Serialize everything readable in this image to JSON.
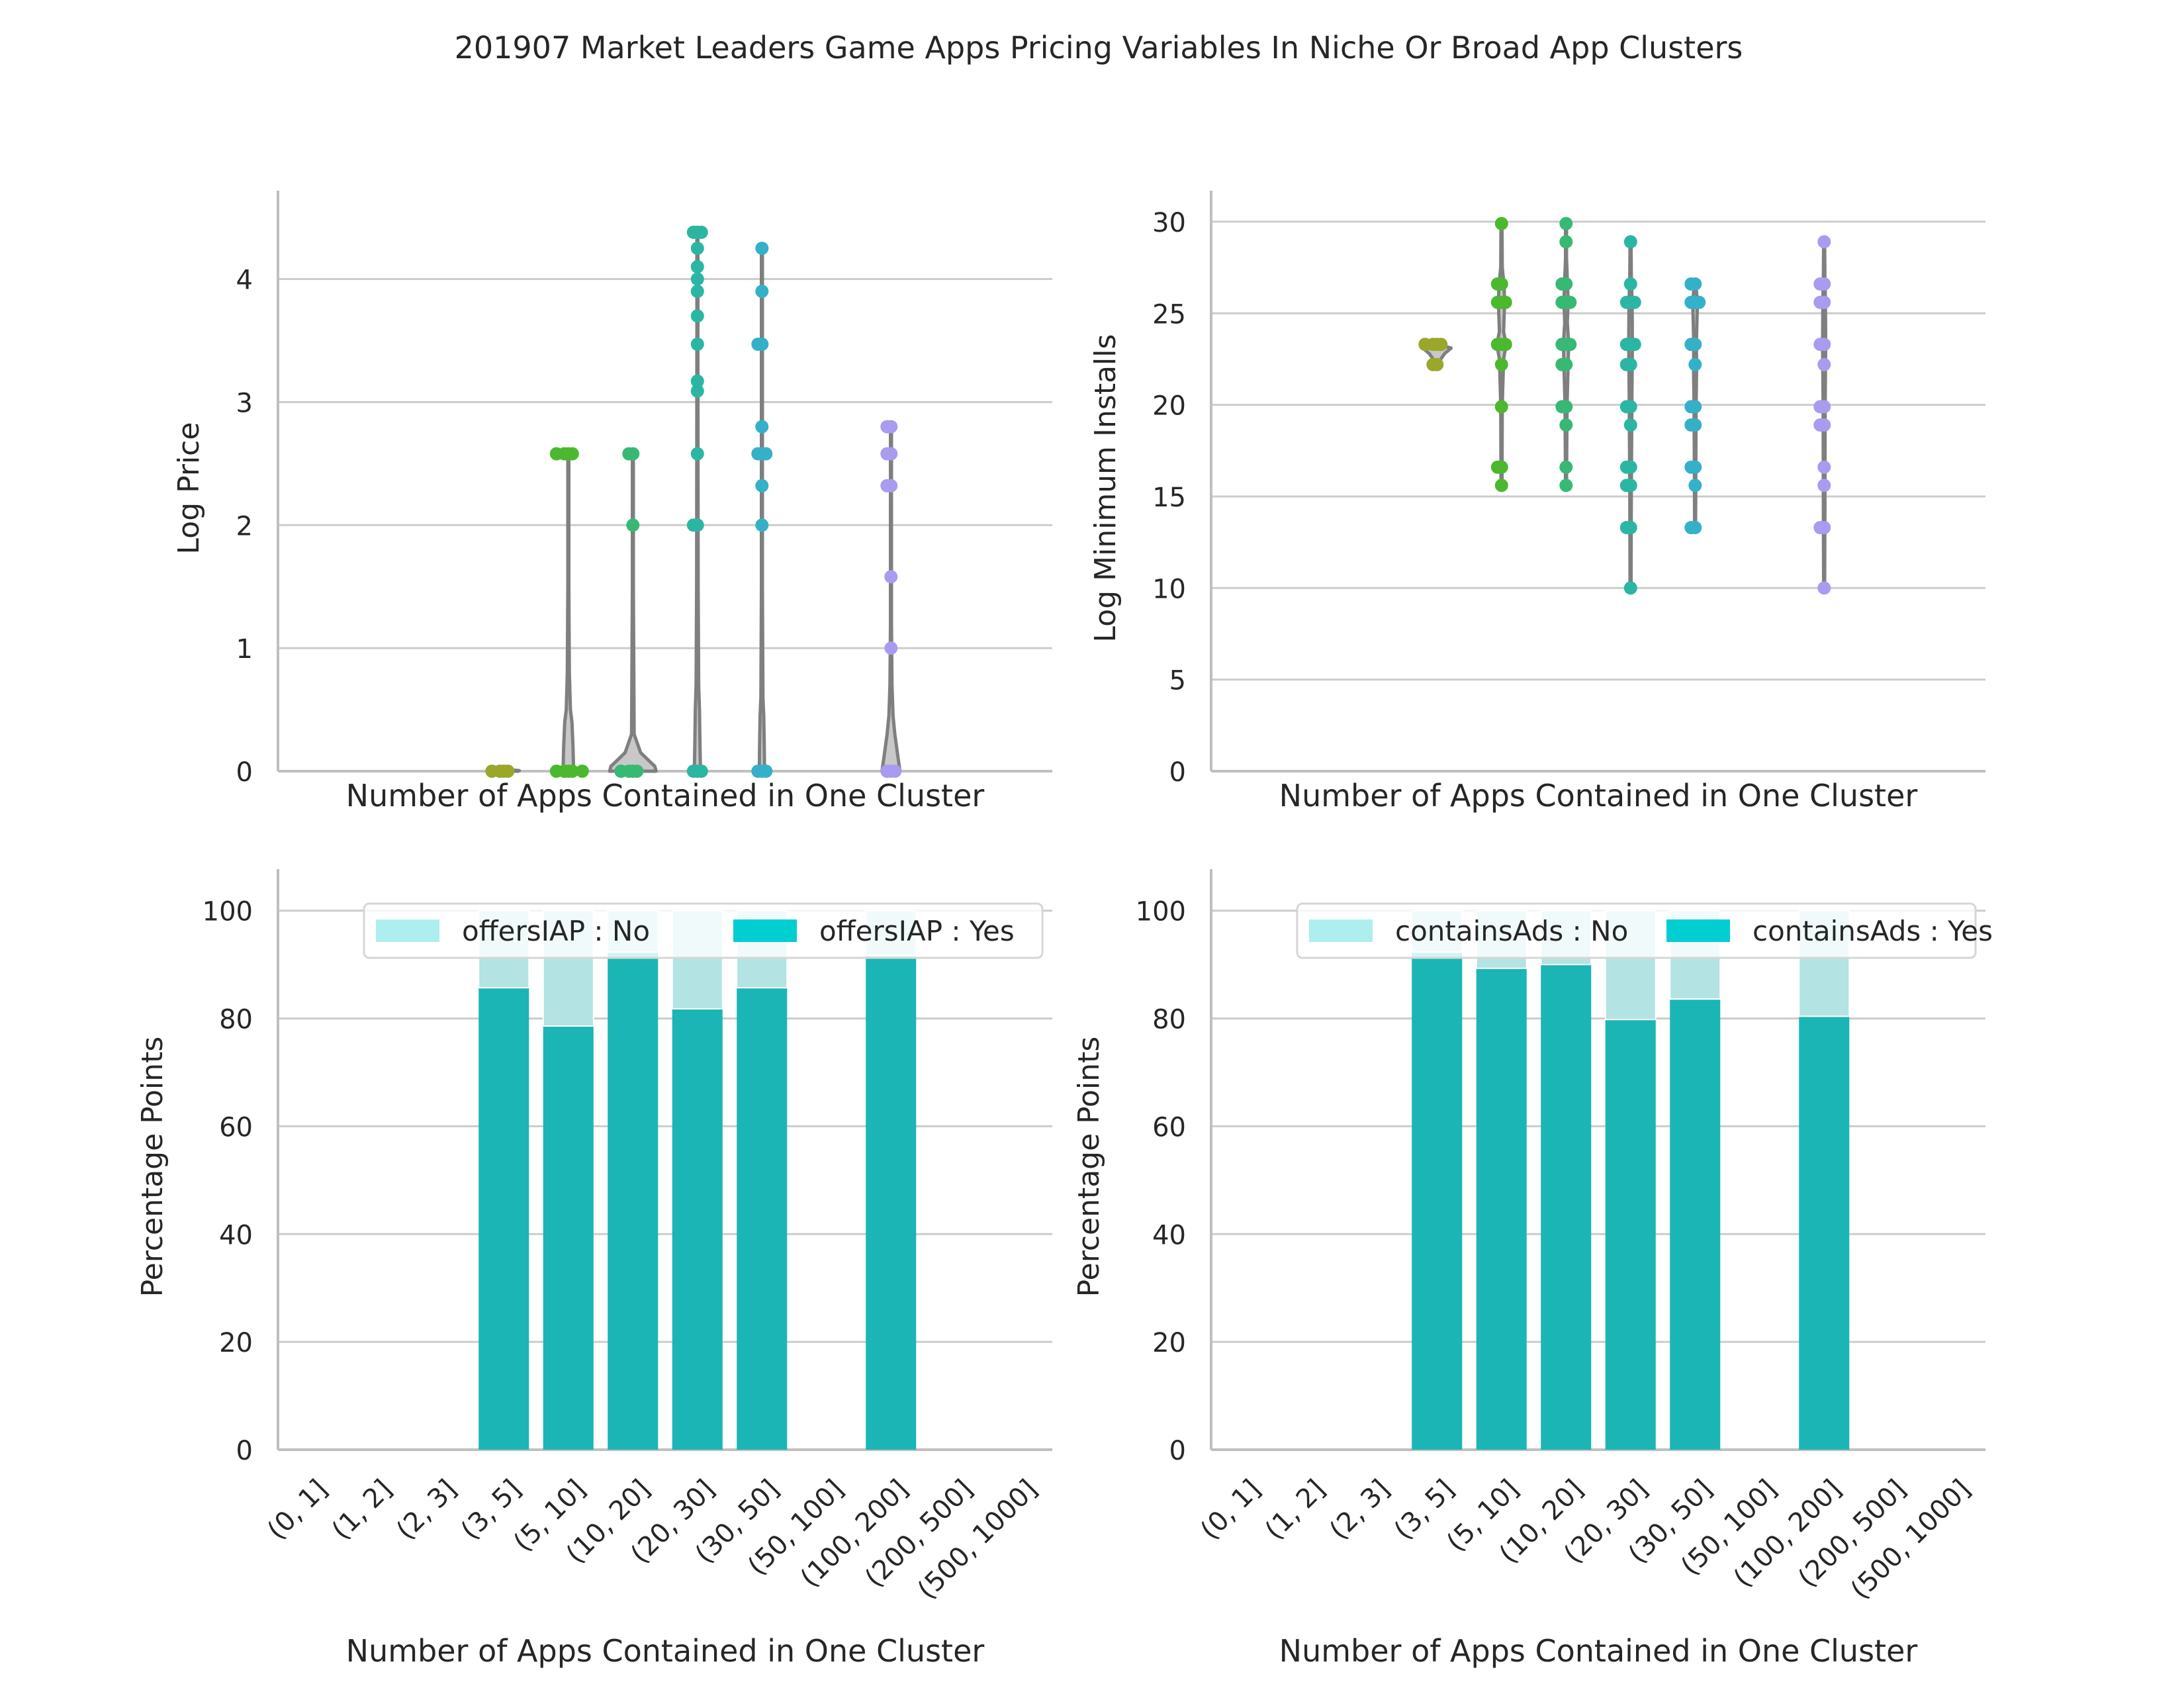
{
  "title": "201907 Market Leaders Game Apps Pricing Variables In Niche Or Broad App Clusters",
  "colors": {
    "grid": "#cccccc",
    "axis": "#bfbfbf",
    "violin_outline": "#7f7f7f",
    "violin_fill": "#c8c8c8",
    "bar_yes": "#1bb5b5",
    "bar_no": "#b3e3e3",
    "legend_yes": "#00ced1",
    "legend_no": "#afeeee",
    "strip_palette": [
      "#9aa72b",
      "#4cb82f",
      "#37b974",
      "#2bb6a3",
      "#35b0c9",
      "#3fb0d6",
      "#a99bf0"
    ]
  },
  "chart_data": [
    {
      "id": "price",
      "type": "violin-strip",
      "xlabel": "Number of Apps Contained in One Cluster",
      "ylabel": "Log Price",
      "ylim": [
        0,
        4.6
      ],
      "yticks": [
        0,
        1,
        2,
        3,
        4
      ],
      "grid": true,
      "categories": [
        "(0, 1]",
        "(1, 2]",
        "(2, 3]",
        "(3, 5]",
        "(5, 10]",
        "(10, 20]",
        "(20, 30]",
        "(30, 50]",
        "(50, 100]",
        "(100, 200]",
        "(200, 500]",
        "(500, 1000]"
      ],
      "category_colors": [
        "#9aa72b",
        "#9aa72b",
        "#9aa72b",
        "#9aa72b",
        "#4cb82f",
        "#37b974",
        "#2bb6a3",
        "#35b0c9",
        "#a99bf0",
        "#a99bf0",
        "#a99bf0",
        "#a99bf0"
      ],
      "violins": [
        {
          "category": "(3, 5]",
          "max": 0,
          "halfwidth": [
            [
              0,
              0.55
            ],
            [
              0.005,
              0.6
            ],
            [
              0.01,
              0.3
            ],
            [
              0.02,
              0.05
            ]
          ]
        },
        {
          "category": "(5, 10]",
          "max": 2.58,
          "halfwidth": [
            [
              0,
              0.25
            ],
            [
              0.05,
              0.2
            ],
            [
              0.2,
              0.18
            ],
            [
              0.4,
              0.14
            ],
            [
              0.5,
              0.08
            ],
            [
              0.8,
              0.04
            ],
            [
              1.5,
              0.02
            ],
            [
              2.58,
              0.02
            ]
          ]
        },
        {
          "category": "(10, 20]",
          "max": 2.58,
          "halfwidth": [
            [
              0,
              0.9
            ],
            [
              0.04,
              0.85
            ],
            [
              0.1,
              0.55
            ],
            [
              0.15,
              0.3
            ],
            [
              0.3,
              0.05
            ],
            [
              1.5,
              0.02
            ],
            [
              2.58,
              0.02
            ]
          ]
        },
        {
          "category": "(20, 30]",
          "max": 4.38,
          "halfwidth": [
            [
              0,
              0.12
            ],
            [
              0.2,
              0.1
            ],
            [
              0.5,
              0.08
            ],
            [
              0.7,
              0.05
            ],
            [
              1.5,
              0.03
            ],
            [
              3.5,
              0.02
            ],
            [
              4.38,
              0.02
            ]
          ]
        },
        {
          "category": "(30, 50]",
          "max": 4.25,
          "halfwidth": [
            [
              0,
              0.1
            ],
            [
              0.2,
              0.09
            ],
            [
              0.45,
              0.07
            ],
            [
              0.6,
              0.04
            ],
            [
              1.5,
              0.02
            ],
            [
              4.25,
              0.02
            ]
          ]
        },
        {
          "category": "(100, 200]",
          "max": 2.8,
          "halfwidth": [
            [
              0,
              0.35
            ],
            [
              0.1,
              0.28
            ],
            [
              0.3,
              0.15
            ],
            [
              0.45,
              0.08
            ],
            [
              0.7,
              0.04
            ],
            [
              1.2,
              0.02
            ],
            [
              2.8,
              0.02
            ]
          ]
        }
      ],
      "points": {
        "(3, 5]": [
          0,
          0,
          0,
          0
        ],
        "(5, 10]": [
          0,
          0,
          0,
          0,
          0,
          2.58,
          2.58,
          2.58,
          2.58
        ],
        "(10, 20]": [
          0,
          0,
          0,
          0,
          2.0,
          2.58,
          2.58
        ],
        "(20, 30]": [
          0,
          0,
          0,
          2.0,
          2.0,
          2.58,
          3.09,
          3.17,
          3.47,
          3.7,
          3.9,
          4.0,
          4.1,
          4.25,
          4.38,
          4.38,
          4.38
        ],
        "(30, 50]": [
          0,
          0,
          0,
          2.0,
          2.32,
          2.58,
          2.58,
          2.58,
          2.8,
          3.47,
          3.47,
          3.9,
          4.25
        ],
        "(100, 200]": [
          0,
          0,
          0,
          1.0,
          1.58,
          2.32,
          2.32,
          2.58,
          2.58,
          2.8,
          2.8
        ]
      }
    },
    {
      "id": "installs",
      "type": "violin-strip",
      "xlabel": "Number of Apps Contained in One Cluster",
      "ylabel": "Log Minimum Installs",
      "ylim": [
        0,
        30.9
      ],
      "yticks": [
        0,
        5,
        10,
        15,
        20,
        25,
        30
      ],
      "grid": true,
      "categories": [
        "(0, 1]",
        "(1, 2]",
        "(2, 3]",
        "(3, 5]",
        "(5, 10]",
        "(10, 20]",
        "(20, 30]",
        "(30, 50]",
        "(50, 100]",
        "(100, 200]",
        "(200, 500]",
        "(500, 1000]"
      ],
      "category_colors": [
        "#9aa72b",
        "#9aa72b",
        "#9aa72b",
        "#9aa72b",
        "#4cb82f",
        "#37b974",
        "#2bb6a3",
        "#35b0c9",
        "#a99bf0",
        "#a99bf0",
        "#a99bf0",
        "#a99bf0"
      ],
      "violins": [
        {
          "category": "(3, 5]",
          "min": 22.3,
          "max": 23.3,
          "halfwidth": [
            [
              22.3,
              0.05
            ],
            [
              22.8,
              0.3
            ],
            [
              23.1,
              0.55
            ],
            [
              23.3,
              0.05
            ]
          ]
        },
        {
          "category": "(5, 10]",
          "min": 15.6,
          "max": 29.9,
          "halfwidth": [
            [
              15.6,
              0.02
            ],
            [
              20,
              0.03
            ],
            [
              22.5,
              0.08
            ],
            [
              23.3,
              0.18
            ],
            [
              24,
              0.08
            ],
            [
              25.6,
              0.12
            ],
            [
              26.5,
              0.1
            ],
            [
              27.5,
              0.03
            ],
            [
              29.9,
              0.02
            ]
          ]
        },
        {
          "category": "(10, 20]",
          "min": 15.6,
          "max": 29.9,
          "halfwidth": [
            [
              15.6,
              0.02
            ],
            [
              20,
              0.04
            ],
            [
              23.3,
              0.1
            ],
            [
              24.5,
              0.05
            ],
            [
              25.6,
              0.08
            ],
            [
              26.5,
              0.06
            ],
            [
              28,
              0.02
            ],
            [
              29.9,
              0.02
            ]
          ]
        },
        {
          "category": "(20, 30]",
          "min": 10.0,
          "max": 28.9,
          "halfwidth": [
            [
              10,
              0.02
            ],
            [
              15,
              0.03
            ],
            [
              20,
              0.05
            ],
            [
              23.3,
              0.07
            ],
            [
              25.6,
              0.06
            ],
            [
              27,
              0.03
            ],
            [
              28.9,
              0.02
            ]
          ]
        },
        {
          "category": "(30, 50]",
          "min": 13.3,
          "max": 26.6,
          "halfwidth": [
            [
              13.3,
              0.02
            ],
            [
              17,
              0.03
            ],
            [
              20,
              0.04
            ],
            [
              22,
              0.06
            ],
            [
              23.3,
              0.05
            ],
            [
              25.6,
              0.09
            ],
            [
              26.6,
              0.03
            ]
          ]
        },
        {
          "category": "(100, 200]",
          "min": 10.0,
          "max": 28.9,
          "halfwidth": [
            [
              10,
              0.02
            ],
            [
              14,
              0.03
            ],
            [
              20,
              0.04
            ],
            [
              23.3,
              0.06
            ],
            [
              25.6,
              0.05
            ],
            [
              27,
              0.03
            ],
            [
              28.9,
              0.02
            ]
          ]
        }
      ],
      "points": {
        "(3, 5]": [
          22.2,
          22.2,
          23.3,
          23.3,
          23.3,
          23.3
        ],
        "(5, 10]": [
          15.6,
          16.6,
          16.6,
          19.9,
          22.2,
          23.3,
          23.3,
          23.3,
          25.6,
          25.6,
          25.6,
          26.6,
          26.6,
          29.9
        ],
        "(10, 20]": [
          15.6,
          16.6,
          18.9,
          19.9,
          19.9,
          22.2,
          22.2,
          23.3,
          23.3,
          23.3,
          25.6,
          25.6,
          25.6,
          26.6,
          26.6,
          28.9,
          29.9
        ],
        "(20, 30]": [
          10.0,
          13.3,
          13.3,
          15.6,
          15.6,
          16.6,
          16.6,
          18.9,
          19.9,
          19.9,
          22.2,
          22.2,
          23.3,
          23.3,
          23.3,
          25.6,
          25.6,
          25.6,
          26.6,
          28.9
        ],
        "(30, 50]": [
          13.3,
          13.3,
          15.6,
          16.6,
          16.6,
          18.9,
          18.9,
          19.9,
          19.9,
          22.2,
          23.3,
          23.3,
          25.6,
          25.6,
          25.6,
          26.6,
          26.6
        ],
        "(100, 200]": [
          10.0,
          13.3,
          13.3,
          15.6,
          16.6,
          18.9,
          18.9,
          19.9,
          19.9,
          22.2,
          23.3,
          23.3,
          25.6,
          25.6,
          26.6,
          26.6,
          28.9
        ]
      }
    },
    {
      "id": "iap",
      "type": "bar",
      "stacked": true,
      "xlabel": "Number of Apps Contained in One Cluster",
      "ylabel": "Percentage Points",
      "ylim": [
        0,
        105
      ],
      "yticks": [
        0,
        20,
        40,
        60,
        80,
        100
      ],
      "grid": true,
      "legend_position": "upper-right",
      "categories": [
        "(0, 1]",
        "(1, 2]",
        "(2, 3]",
        "(3, 5]",
        "(5, 10]",
        "(10, 20]",
        "(20, 30]",
        "(30, 50]",
        "(50, 100]",
        "(100, 200]",
        "(200, 500]",
        "(500, 1000]"
      ],
      "series": [
        {
          "name": "offersIAP : Yes",
          "color": "#1bb5b5",
          "legend_color": "#00ced1",
          "values": [
            null,
            null,
            null,
            85.7,
            78.6,
            92.3,
            81.8,
            85.7,
            null,
            91.7,
            null,
            null
          ]
        },
        {
          "name": "offersIAP : No",
          "color": "#b3e3e3",
          "legend_color": "#afeeee",
          "values": [
            null,
            null,
            null,
            14.3,
            21.4,
            7.7,
            18.2,
            14.3,
            null,
            8.3,
            null,
            null
          ]
        }
      ],
      "legend_order": [
        "offersIAP : No",
        "offersIAP : Yes"
      ]
    },
    {
      "id": "ads",
      "type": "bar",
      "stacked": true,
      "xlabel": "Number of Apps Contained in One Cluster",
      "ylabel": "Percentage Points",
      "ylim": [
        0,
        105
      ],
      "yticks": [
        0,
        20,
        40,
        60,
        80,
        100
      ],
      "grid": true,
      "legend_position": "upper-right",
      "categories": [
        "(0, 1]",
        "(1, 2]",
        "(2, 3]",
        "(3, 5]",
        "(5, 10]",
        "(10, 20]",
        "(20, 30]",
        "(30, 50]",
        "(50, 100]",
        "(100, 200]",
        "(200, 500]",
        "(500, 1000]"
      ],
      "series": [
        {
          "name": "containsAds : Yes",
          "color": "#1bb5b5",
          "legend_color": "#00ced1",
          "values": [
            null,
            null,
            null,
            92.3,
            89.3,
            90.0,
            79.8,
            83.6,
            null,
            80.4,
            null,
            null
          ]
        },
        {
          "name": "containsAds : No",
          "color": "#b3e3e3",
          "legend_color": "#afeeee",
          "values": [
            null,
            null,
            null,
            7.7,
            10.7,
            10.0,
            20.2,
            16.4,
            null,
            19.6,
            null,
            null
          ]
        }
      ],
      "legend_order": [
        "containsAds : No",
        "containsAds : Yes"
      ]
    }
  ]
}
